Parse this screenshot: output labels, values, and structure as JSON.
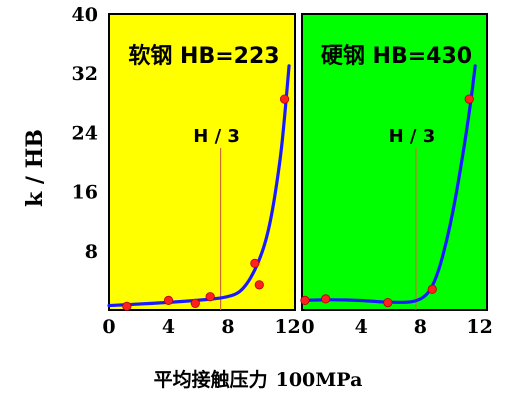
{
  "chart_data": {
    "type": "line",
    "ylabel": "k / HB",
    "xlabel": "平均接触压力",
    "xlabel_unit": "100MPa",
    "ylim": [
      0,
      40
    ],
    "yticks": [
      "8",
      "16",
      "24",
      "32",
      "40"
    ],
    "panels": [
      {
        "title": "软钢 HB=223",
        "background": "#FFFF00",
        "xlim": [
          0,
          12.5
        ],
        "xticks": [
          "0",
          "4",
          "8",
          "12"
        ],
        "annotation": "H / 3",
        "annotation_x": 7.5,
        "curve": [
          [
            0,
            0.6
          ],
          [
            3,
            0.9
          ],
          [
            6,
            1.3
          ],
          [
            8,
            1.7
          ],
          [
            9,
            2.6
          ],
          [
            10,
            6
          ],
          [
            10.8,
            11
          ],
          [
            11.5,
            20
          ],
          [
            11.8,
            26
          ],
          [
            12.1,
            33
          ]
        ],
        "points": [
          [
            1.2,
            0.5
          ],
          [
            4,
            1.3
          ],
          [
            5.8,
            0.9
          ],
          [
            6.8,
            1.8
          ],
          [
            9.8,
            6.3
          ],
          [
            10.1,
            3.4
          ],
          [
            11.8,
            28.5
          ]
        ]
      },
      {
        "title": "硬钢 HB=430",
        "background": "#00FF00",
        "xlim": [
          0,
          12.5
        ],
        "xticks": [
          "0",
          "4",
          "8",
          "12"
        ],
        "annotation": "H / 3",
        "annotation_x": 7.7,
        "curve": [
          [
            0,
            1.3
          ],
          [
            2,
            1.4
          ],
          [
            4,
            1.3
          ],
          [
            6,
            1.0
          ],
          [
            8,
            1.1
          ],
          [
            9,
            3.5
          ],
          [
            10,
            11
          ],
          [
            10.8,
            20
          ],
          [
            11.4,
            28
          ],
          [
            11.7,
            33
          ]
        ],
        "points": [
          [
            0.2,
            1.3
          ],
          [
            1.6,
            1.5
          ],
          [
            5.8,
            1.0
          ],
          [
            8.8,
            2.8
          ],
          [
            11.3,
            28.5
          ]
        ]
      }
    ]
  }
}
